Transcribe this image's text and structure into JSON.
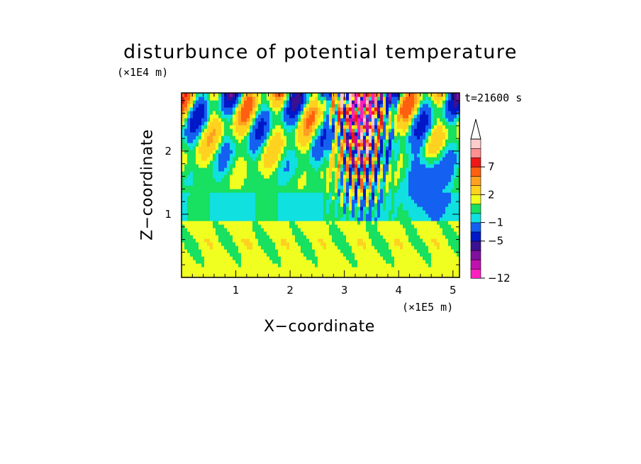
{
  "chart_data": {
    "type": "heatmap",
    "title": "disturbunce of potential temperature",
    "xlabel": "X−coordinate",
    "ylabel": "Z−coordinate",
    "x_unit": "(×1E5 m)",
    "z_unit": "(×1E4 m)",
    "time_label": "t=21600 s",
    "xlim": [
      0,
      5.12
    ],
    "ylim": [
      0,
      2.92
    ],
    "x_ticks": [
      1,
      2,
      3,
      4,
      5
    ],
    "x_tick_labels": [
      "1",
      "2",
      "3",
      "4",
      "5"
    ],
    "y_ticks": [
      1,
      2
    ],
    "y_tick_labels": [
      "1",
      "2"
    ],
    "colorbar": {
      "levels": [
        -12,
        -10,
        -8,
        -6,
        -5,
        -3,
        -1,
        0,
        1,
        2,
        4,
        5,
        7,
        9,
        11
      ],
      "tick_labels": [
        {
          "value": -12,
          "label": "−12"
        },
        {
          "value": -5,
          "label": "−5"
        },
        {
          "value": -1,
          "label": "−1"
        },
        {
          "value": 2,
          "label": "2"
        },
        {
          "value": 7,
          "label": "7"
        }
      ],
      "colors": [
        "#ff1fbf",
        "#c012b0",
        "#8010a0",
        "#3c1090",
        "#0018c8",
        "#1460f0",
        "#10e0e0",
        "#18e060",
        "#f0ff20",
        "#ffd220",
        "#ffa020",
        "#ff6010",
        "#ee1818",
        "#ff9090",
        "#ffcccc"
      ],
      "extend": "max"
    },
    "field_description_values": {
      "background_level_low": 1,
      "background_level_mid": 0,
      "background_level_high": 0
    }
  }
}
